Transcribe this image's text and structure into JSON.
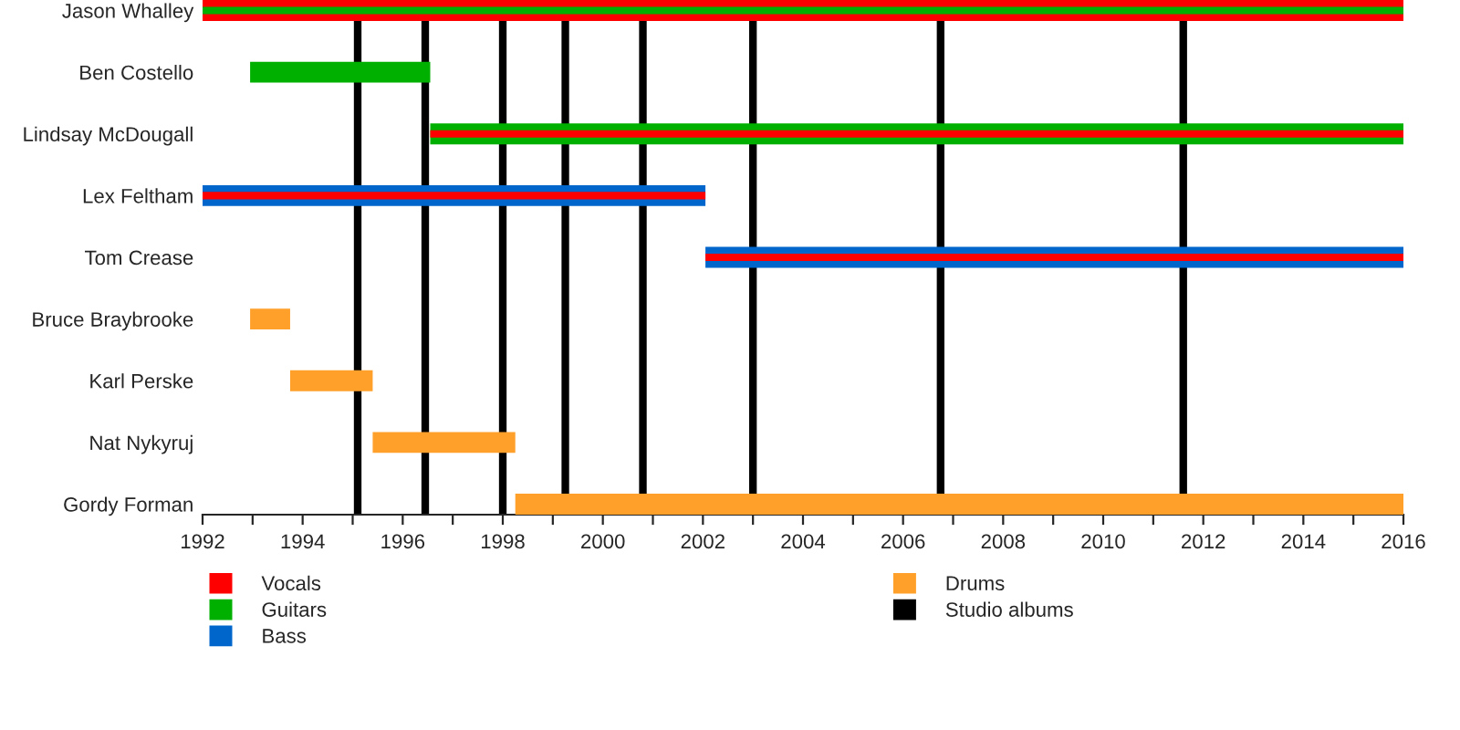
{
  "chart_data": {
    "type": "bar",
    "orientation": "horizontal",
    "categories": [
      "Jason Whalley",
      "Ben Costello",
      "Lindsay McDougall",
      "Lex Feltham",
      "Tom Crease",
      "Bruce Braybrooke",
      "Karl Perske",
      "Nat Nykyruj",
      "Gordy Forman"
    ],
    "series": [
      {
        "name": "Vocals",
        "color": "#ff0000",
        "base": [
          1992,
          null,
          null,
          null,
          null,
          null,
          null,
          null,
          null
        ],
        "values": [
          24,
          null,
          null,
          null,
          null,
          null,
          null,
          null,
          null
        ]
      },
      {
        "name": "Guitars",
        "color": "#00b000",
        "base": [
          null,
          1992.95,
          1996.55,
          null,
          null,
          null,
          null,
          null,
          null
        ],
        "values": [
          null,
          3.6,
          19.45,
          null,
          null,
          null,
          null,
          null,
          null
        ]
      },
      {
        "name": "Bass",
        "color": "#0066cc",
        "base": [
          null,
          null,
          null,
          1992,
          2002.05,
          null,
          null,
          null,
          null
        ],
        "values": [
          null,
          null,
          null,
          10.05,
          13.95,
          null,
          null,
          null,
          null
        ]
      },
      {
        "name": "Drums",
        "color": "#ffa02a",
        "base": [
          null,
          null,
          null,
          null,
          null,
          1992.95,
          1993.75,
          1995.4,
          1998.25
        ],
        "values": [
          null,
          null,
          null,
          null,
          null,
          0.8,
          1.65,
          2.85,
          17.75
        ]
      },
      {
        "color": "#ff0000",
        "base": [
          null,
          null,
          1996.55,
          1992,
          2002.05,
          null,
          null,
          null,
          null
        ],
        "values": [
          null,
          null,
          19.45,
          10.05,
          13.95,
          null,
          null,
          null,
          null
        ]
      },
      {
        "color": "#00b000",
        "base": [
          1992,
          null,
          null,
          null,
          null,
          null,
          null,
          null,
          null
        ],
        "values": [
          24,
          null,
          null,
          null,
          null,
          null,
          null,
          null,
          null
        ]
      }
    ],
    "ref_lines": [
      {
        "axis": "x",
        "value": 1995.1,
        "label": "Studio albums",
        "color": "#000000"
      },
      {
        "axis": "x",
        "value": 1996.45,
        "color": "#000000"
      },
      {
        "axis": "x",
        "value": 1998.0,
        "color": "#000000"
      },
      {
        "axis": "x",
        "value": 1999.25,
        "color": "#000000"
      },
      {
        "axis": "x",
        "value": 2000.8,
        "color": "#000000"
      },
      {
        "axis": "x",
        "value": 2003.0,
        "color": "#000000"
      },
      {
        "axis": "x",
        "value": 2006.75,
        "color": "#000000"
      },
      {
        "axis": "x",
        "value": 2011.6,
        "color": "#000000"
      }
    ],
    "xlim": [
      1992,
      2016
    ],
    "xticks": [
      1992,
      {
        "value": 1993,
        "label": null
      },
      1994,
      {
        "value": 1995,
        "label": null
      },
      1996,
      {
        "value": 1997,
        "label": null
      },
      1998,
      {
        "value": 1999,
        "label": null
      },
      2000,
      {
        "value": 2001,
        "label": null
      },
      2002,
      {
        "value": 2003,
        "label": null
      },
      2004,
      {
        "value": 2005,
        "label": null
      },
      2006,
      {
        "value": 2007,
        "label": null
      },
      2008,
      {
        "value": 2009,
        "label": null
      },
      2010,
      {
        "value": 2011,
        "label": null
      },
      2012,
      {
        "value": 2013,
        "label": null
      },
      2014,
      {
        "value": 2015,
        "label": null
      },
      2016
    ],
    "grid": false,
    "legend": "bottom"
  }
}
